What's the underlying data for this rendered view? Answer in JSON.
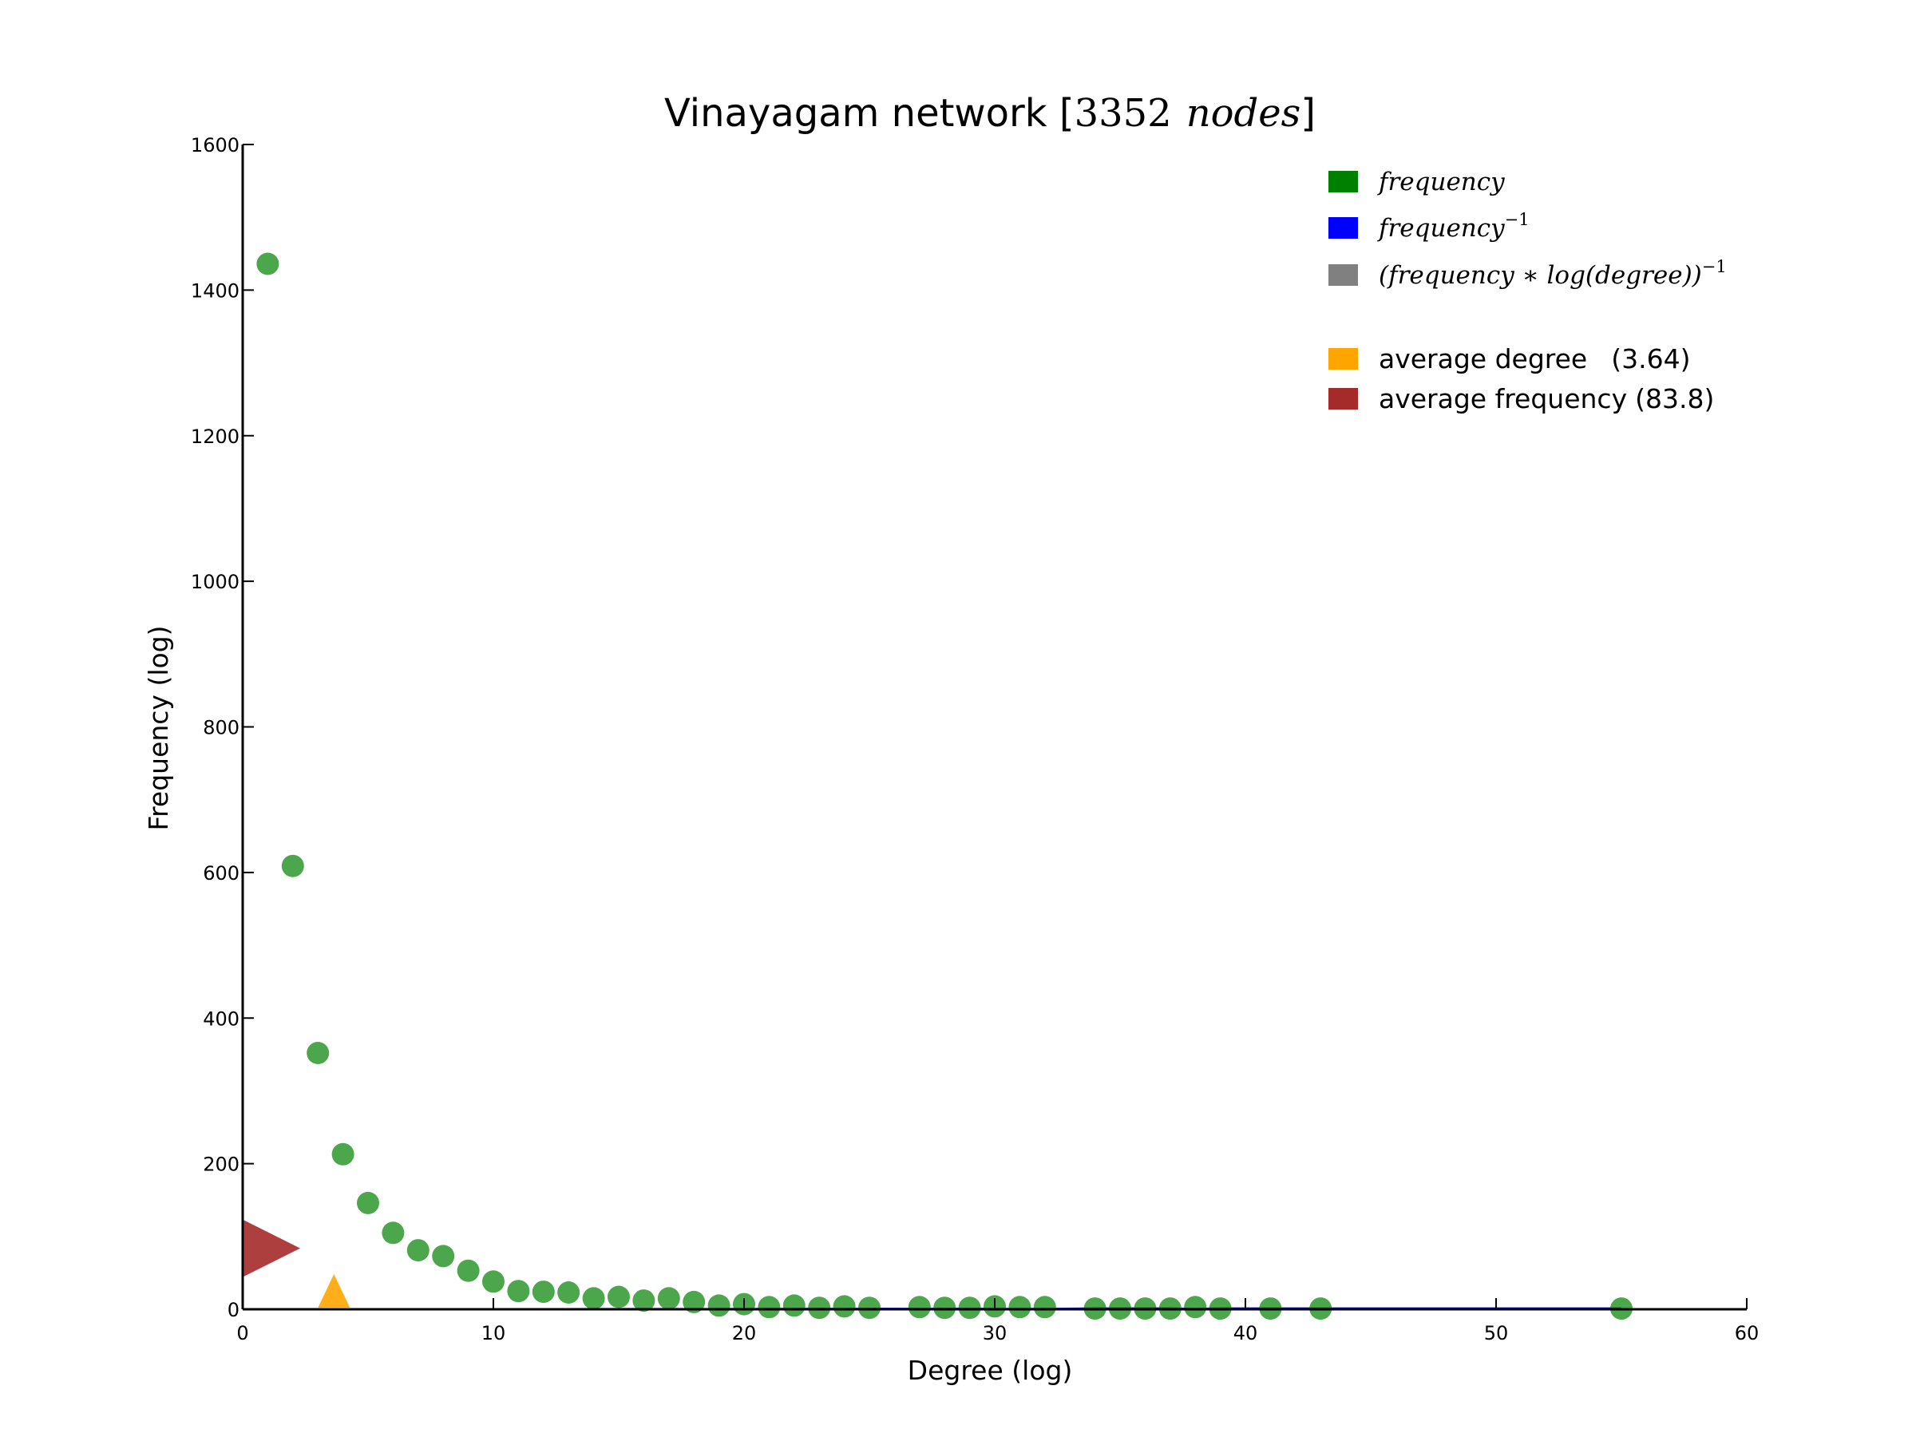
{
  "chart_data": {
    "type": "scatter",
    "title": {
      "text": "Vinayagam network [",
      "math_number": "3352",
      "math_word": "nodes",
      "close": "]"
    },
    "xlabel": "Degree (log)",
    "ylabel": "Frequency (log)",
    "xlim": [
      0,
      60
    ],
    "ylim": [
      0,
      1600
    ],
    "xticks": [
      0,
      10,
      20,
      30,
      40,
      50,
      60
    ],
    "yticks": [
      0,
      200,
      400,
      600,
      800,
      1000,
      1200,
      1400,
      1600
    ],
    "grid": false,
    "legend_position": "top-right",
    "series": [
      {
        "name": "frequency",
        "color": "#008000",
        "x": [
          1,
          2,
          3,
          4,
          5,
          6,
          7,
          8,
          9,
          10,
          11,
          12,
          13,
          14,
          15,
          16,
          17,
          18,
          19,
          20,
          21,
          22,
          23,
          24,
          25,
          27,
          28,
          29,
          30,
          31,
          32,
          34,
          35,
          36,
          37,
          38,
          39,
          41,
          43,
          55
        ],
        "y": [
          1436,
          609,
          352,
          213,
          146,
          105,
          81,
          73,
          53,
          38,
          25,
          24,
          23,
          15,
          17,
          12,
          15,
          10,
          5,
          7,
          3,
          5,
          2,
          4,
          2,
          3,
          2,
          2,
          4,
          3,
          3,
          1,
          1,
          1,
          1,
          3,
          1,
          1,
          1,
          1
        ]
      },
      {
        "name": "frequency^-1",
        "color": "#0000ff",
        "x": [
          1,
          2,
          3,
          4,
          5,
          6,
          7,
          8,
          9,
          10,
          11,
          12,
          13,
          14,
          15,
          16,
          17,
          18,
          19,
          20,
          21,
          22,
          23,
          24,
          25,
          27,
          28,
          29,
          30,
          31,
          32,
          34,
          35,
          36,
          37,
          38,
          39,
          41,
          43,
          55
        ],
        "y": [
          0.0007,
          0.0016,
          0.0028,
          0.0047,
          0.0068,
          0.0095,
          0.0123,
          0.0137,
          0.0189,
          0.0263,
          0.04,
          0.0417,
          0.0435,
          0.0667,
          0.0588,
          0.0833,
          0.0667,
          0.1,
          0.2,
          0.1429,
          0.3333,
          0.2,
          0.5,
          0.25,
          0.5,
          0.3333,
          0.5,
          0.5,
          0.25,
          0.3333,
          0.3333,
          1,
          1,
          1,
          1,
          0.3333,
          1,
          1,
          1,
          1
        ]
      },
      {
        "name": "(frequency*log(degree))^-1",
        "color": "#808080",
        "x": [],
        "y": []
      }
    ],
    "markers": [
      {
        "name": "average degree",
        "value": 3.64,
        "value_label": "(3.64)",
        "axis": "x",
        "color": "#ffa500"
      },
      {
        "name": "average frequency",
        "value": 83.8,
        "value_label": "(83.8)",
        "axis": "y",
        "color": "#a52a2a"
      }
    ],
    "legend": {
      "math_entries": [
        {
          "base": "frequency",
          "sup": "",
          "color": "#008000"
        },
        {
          "base": "frequency",
          "sup": "−1",
          "color": "#0000ff"
        },
        {
          "base": "(frequency ∗ log(degree))",
          "sup": "−1",
          "color": "#808080"
        }
      ],
      "text_entries": [
        {
          "label": "average degree",
          "value": "(3.64)",
          "color": "#ffa500"
        },
        {
          "label": "average frequency",
          "value": "(83.8)",
          "color": "#a52a2a"
        }
      ]
    }
  }
}
